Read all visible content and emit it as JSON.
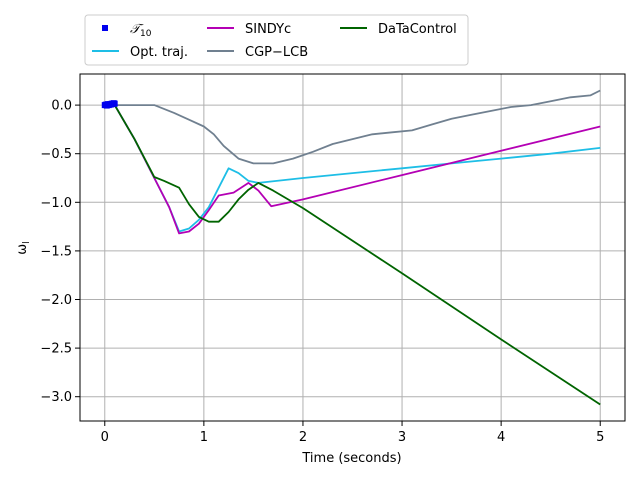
{
  "chart_data": {
    "type": "line",
    "title": "",
    "xlabel": "Time (seconds)",
    "ylabel": "ω",
    "ylabel_sub": "l",
    "xlim": [
      -0.25,
      5.25
    ],
    "ylim": [
      -3.25,
      0.32
    ],
    "grid": true,
    "legend_placement": "above-plot",
    "x_ticks": [
      0,
      1,
      2,
      3,
      4,
      5
    ],
    "x_tick_labels": [
      "0",
      "1",
      "2",
      "3",
      "4",
      "5"
    ],
    "y_ticks": [
      0.0,
      -0.5,
      -1.0,
      -1.5,
      -2.0,
      -2.5,
      -3.0
    ],
    "y_tick_labels": [
      "0.0",
      "−0.5",
      "−1.0",
      "−1.5",
      "−2.0",
      "−2.5",
      "−3.0"
    ],
    "series": [
      {
        "name": "𝒯",
        "name_sub": "10",
        "style": "markers",
        "color": "#0000ee",
        "x": [
          0.0,
          0.01,
          0.02,
          0.03,
          0.04,
          0.05,
          0.06,
          0.07,
          0.08,
          0.09,
          0.1
        ],
        "y": [
          0.0,
          0.005,
          -0.005,
          0.01,
          0.0,
          0.01,
          0.005,
          0.015,
          0.01,
          0.02,
          0.015
        ]
      },
      {
        "name": "Opt. traj.",
        "style": "line",
        "color": "#1ebee6",
        "x": [
          0.0,
          0.1,
          0.3,
          0.5,
          0.65,
          0.75,
          0.85,
          0.95,
          1.05,
          1.15,
          1.25,
          1.35,
          1.45,
          1.55,
          2.0,
          2.5,
          3.0,
          3.5,
          4.0,
          4.5,
          5.0
        ],
        "y": [
          0.0,
          0.0,
          -0.35,
          -0.75,
          -1.05,
          -1.3,
          -1.27,
          -1.18,
          -1.05,
          -0.85,
          -0.65,
          -0.7,
          -0.78,
          -0.8,
          -0.75,
          -0.7,
          -0.65,
          -0.6,
          -0.55,
          -0.5,
          -0.44
        ]
      },
      {
        "name": "SINDYc",
        "style": "line",
        "color": "#b400b4",
        "x": [
          0.0,
          0.1,
          0.3,
          0.5,
          0.65,
          0.75,
          0.85,
          0.95,
          1.05,
          1.15,
          1.3,
          1.45,
          1.55,
          1.68,
          2.0,
          3.0,
          4.0,
          5.0
        ],
        "y": [
          0.0,
          0.0,
          -0.35,
          -0.75,
          -1.05,
          -1.32,
          -1.3,
          -1.22,
          -1.08,
          -0.93,
          -0.9,
          -0.8,
          -0.88,
          -1.04,
          -0.97,
          -0.72,
          -0.47,
          -0.22
        ]
      },
      {
        "name": "CGP−LCB",
        "style": "line",
        "color": "#708090",
        "x": [
          0.0,
          0.1,
          0.3,
          0.5,
          0.7,
          0.85,
          1.0,
          1.1,
          1.2,
          1.35,
          1.5,
          1.7,
          1.9,
          2.1,
          2.3,
          2.5,
          2.7,
          2.9,
          3.1,
          3.3,
          3.5,
          3.7,
          3.9,
          4.1,
          4.3,
          4.5,
          4.7,
          4.9,
          5.0
        ],
        "y": [
          0.0,
          0.0,
          0.0,
          0.0,
          -0.08,
          -0.15,
          -0.22,
          -0.3,
          -0.42,
          -0.55,
          -0.6,
          -0.6,
          -0.55,
          -0.48,
          -0.4,
          -0.35,
          -0.3,
          -0.28,
          -0.26,
          -0.2,
          -0.14,
          -0.1,
          -0.06,
          -0.02,
          0.0,
          0.04,
          0.08,
          0.1,
          0.15
        ]
      },
      {
        "name": "DaTaControl",
        "style": "line",
        "color": "#006400",
        "x": [
          0.0,
          0.1,
          0.3,
          0.5,
          0.6,
          0.75,
          0.85,
          0.95,
          1.05,
          1.15,
          1.25,
          1.35,
          1.45,
          1.55,
          1.7,
          2.0,
          3.0,
          4.0,
          5.0
        ],
        "y": [
          0.0,
          0.0,
          -0.35,
          -0.74,
          -0.78,
          -0.85,
          -1.02,
          -1.15,
          -1.2,
          -1.2,
          -1.1,
          -0.97,
          -0.87,
          -0.8,
          -0.88,
          -1.06,
          -1.73,
          -2.41,
          -3.08
        ]
      }
    ]
  }
}
